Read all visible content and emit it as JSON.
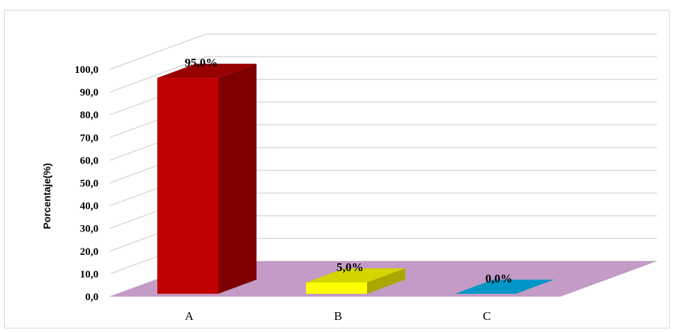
{
  "chart_data": {
    "type": "bar",
    "style": "3d-column",
    "categories": [
      "A",
      "B",
      "C"
    ],
    "values": [
      95.0,
      5.0,
      0.0
    ],
    "data_labels": [
      "95,0%",
      "5,0%",
      "0,0%"
    ],
    "y_ticks": [
      "0,0",
      "10,0",
      "20,0",
      "30,0",
      "40,0",
      "50,0",
      "60,0",
      "70,0",
      "80,0",
      "90,0",
      "100,0"
    ],
    "ylabel": "Porcentaje(%)",
    "xlabel": "",
    "title": "",
    "ylim": [
      0,
      100
    ],
    "grid": true,
    "legend": "none",
    "colors": {
      "bar_front": [
        "#c00000",
        "#ffff00",
        "#0096c8"
      ],
      "bar_side": [
        "#7f0000",
        "#a8a800",
        "#006f96"
      ],
      "bar_top": [
        "#990000",
        "#d4d400",
        "#007fb0"
      ],
      "floor": "#c39bc6",
      "gridline": "#d9d9d9"
    }
  }
}
